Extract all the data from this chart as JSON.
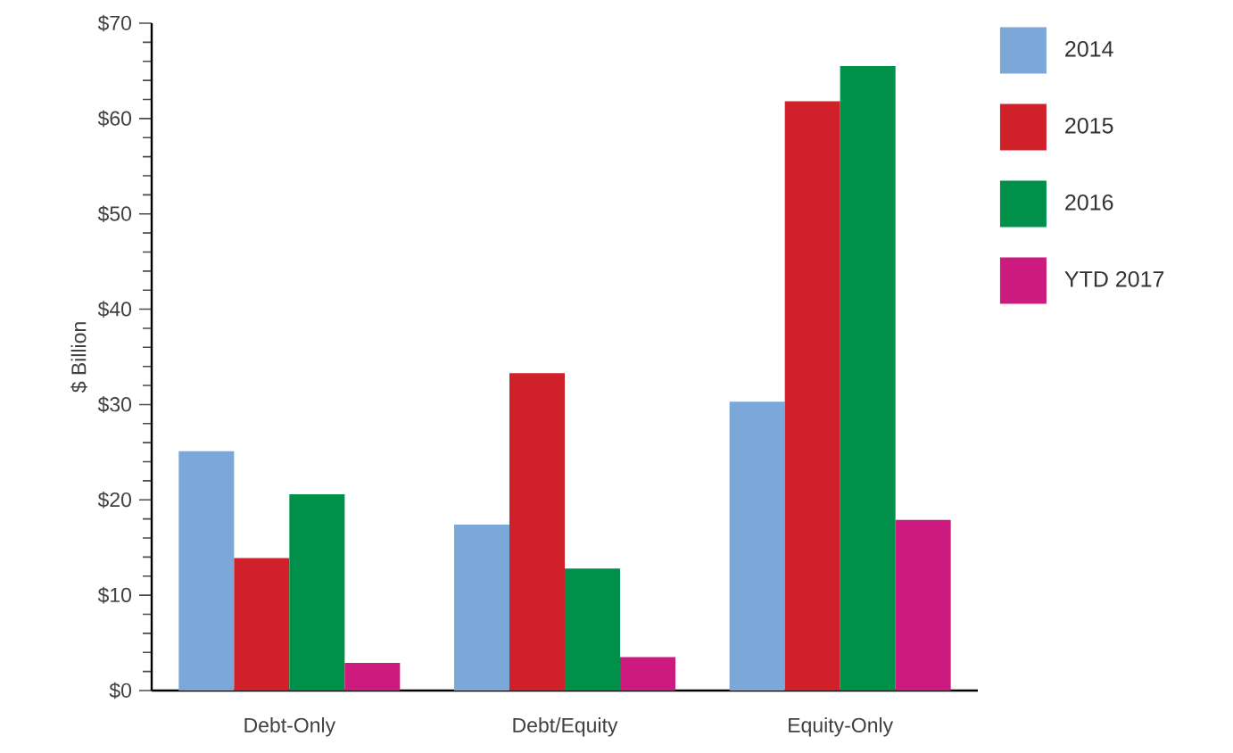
{
  "chart_data": {
    "type": "bar",
    "ylabel": "$ Billion",
    "categories": [
      "Debt-Only",
      "Debt/Equity",
      "Equity-Only"
    ],
    "series": [
      {
        "name": "2014",
        "color": "#7ba7d9",
        "values": [
          25.1,
          17.4,
          30.3
        ]
      },
      {
        "name": "2015",
        "color": "#d0202a",
        "values": [
          13.9,
          33.3,
          61.8
        ]
      },
      {
        "name": "2016",
        "color": "#00904a",
        "values": [
          20.6,
          12.8,
          65.5
        ]
      },
      {
        "name": "YTD 2017",
        "color": "#cc1a7e",
        "values": [
          2.9,
          3.5,
          17.9
        ]
      }
    ],
    "ylim": [
      0,
      70
    ],
    "yticks": [
      {
        "value": 0,
        "label": "$0"
      },
      {
        "value": 2,
        "label": null
      },
      {
        "value": 4,
        "label": null
      },
      {
        "value": 6,
        "label": null
      },
      {
        "value": 8,
        "label": null
      },
      {
        "value": 10,
        "label": "$10"
      },
      {
        "value": 12,
        "label": null
      },
      {
        "value": 14,
        "label": null
      },
      {
        "value": 16,
        "label": null
      },
      {
        "value": 18,
        "label": null
      },
      {
        "value": 20,
        "label": "$20"
      },
      {
        "value": 22,
        "label": null
      },
      {
        "value": 24,
        "label": null
      },
      {
        "value": 26,
        "label": null
      },
      {
        "value": 28,
        "label": null
      },
      {
        "value": 30,
        "label": "$30"
      },
      {
        "value": 32,
        "label": null
      },
      {
        "value": 34,
        "label": null
      },
      {
        "value": 36,
        "label": null
      },
      {
        "value": 38,
        "label": null
      },
      {
        "value": 40,
        "label": "$40"
      },
      {
        "value": 42,
        "label": null
      },
      {
        "value": 44,
        "label": null
      },
      {
        "value": 46,
        "label": null
      },
      {
        "value": 48,
        "label": null
      },
      {
        "value": 50,
        "label": "$50"
      },
      {
        "value": 52,
        "label": null
      },
      {
        "value": 54,
        "label": null
      },
      {
        "value": 56,
        "label": null
      },
      {
        "value": 58,
        "label": null
      },
      {
        "value": 60,
        "label": "$60"
      },
      {
        "value": 62,
        "label": null
      },
      {
        "value": 64,
        "label": null
      },
      {
        "value": 66,
        "label": null
      },
      {
        "value": 68,
        "label": null
      },
      {
        "value": 70,
        "label": "$70"
      }
    ],
    "legend": "top right",
    "grid": false
  }
}
